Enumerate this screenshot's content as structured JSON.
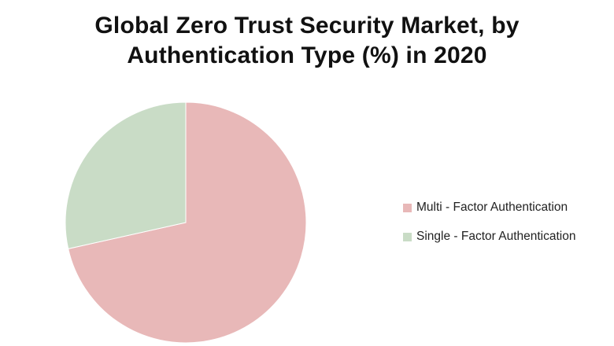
{
  "chart_data": {
    "type": "pie",
    "title_lines": [
      "Global Zero Trust Security Market, by",
      "Authentication Type  (%) in 2020"
    ],
    "slices": [
      {
        "label": "Multi - Factor Authentication",
        "value": 71.5,
        "color": "#e8b8b8"
      },
      {
        "label": "Single - Factor Authentication",
        "value": 28.5,
        "color": "#c9dcc6"
      }
    ],
    "start_angle_deg": 0,
    "direction": "clockwise",
    "legend_position": "right"
  }
}
